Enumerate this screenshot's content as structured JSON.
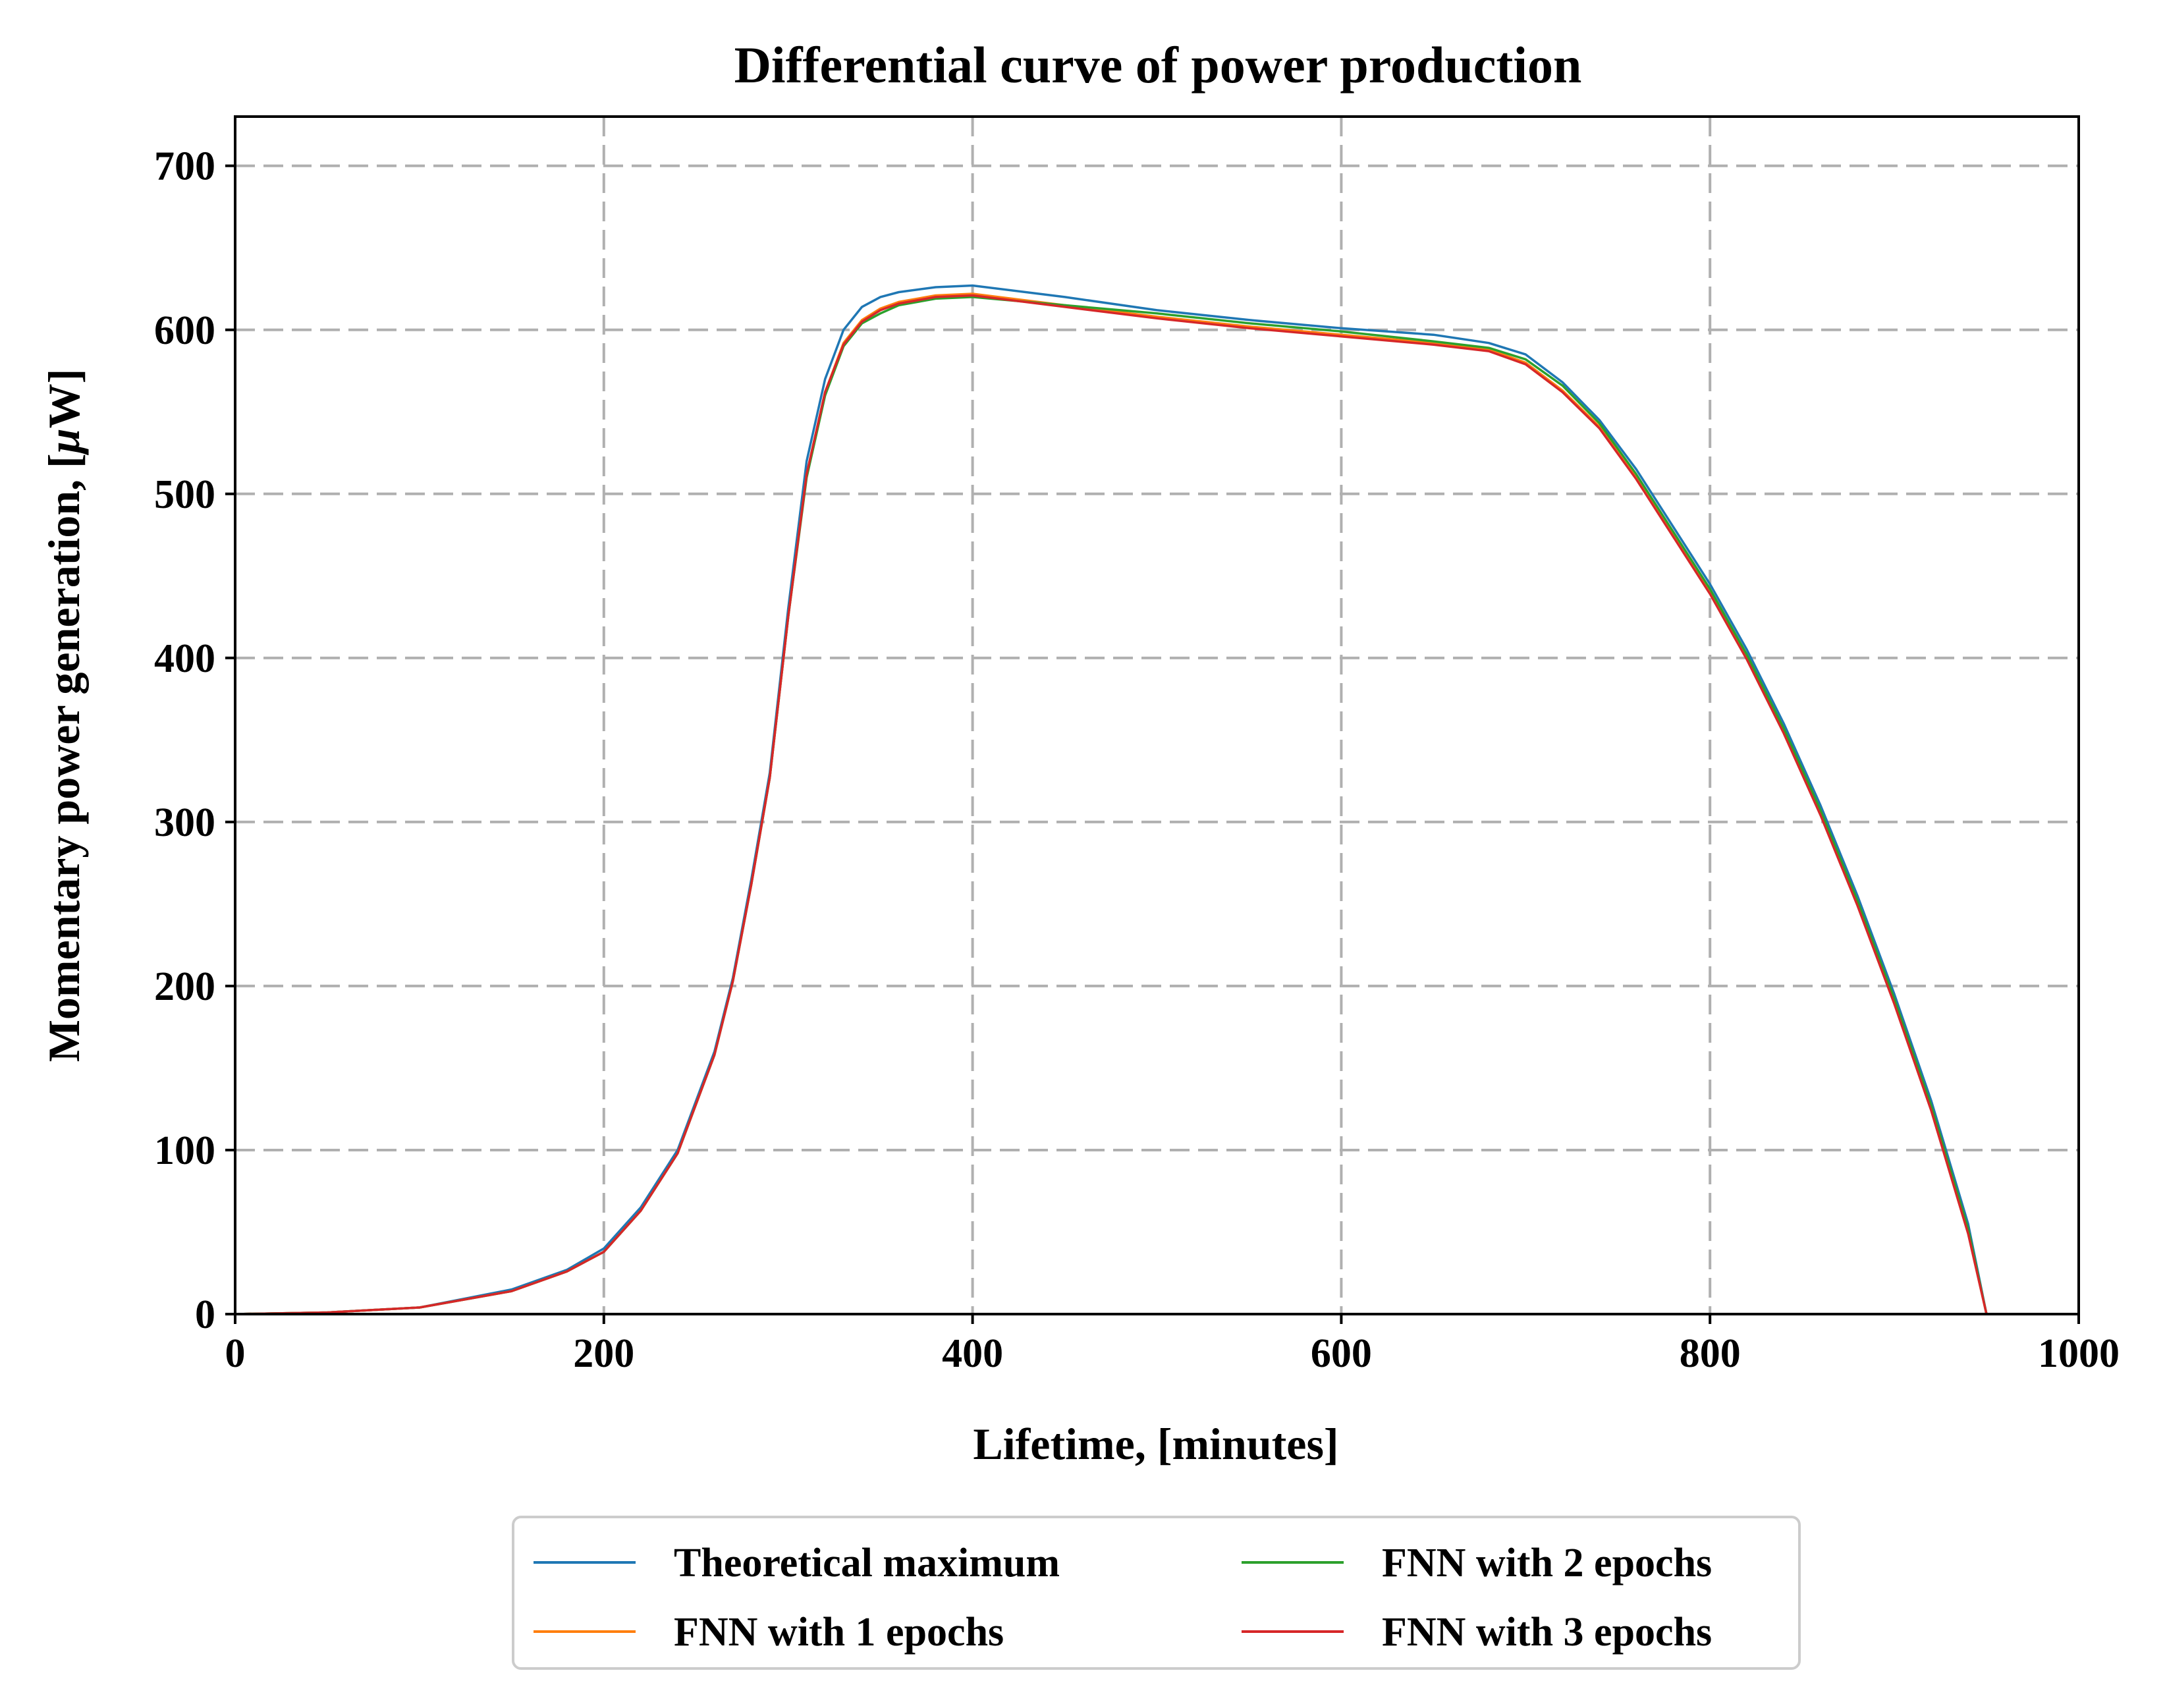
{
  "chart_data": {
    "type": "line",
    "title": "Differential curve of power production",
    "xlabel": "Lifetime, [minutes]",
    "ylabel_prefix": "Momentary power generation, [",
    "ylabel_mu": "μ",
    "ylabel_suffix": "W]",
    "xlim": [
      0,
      1000
    ],
    "ylim": [
      0,
      730
    ],
    "xticks": [
      0,
      200,
      400,
      600,
      800,
      1000
    ],
    "yticks": [
      0,
      100,
      200,
      300,
      400,
      500,
      600,
      700
    ],
    "grid": true,
    "legend_position": "below",
    "legend_columns": 2,
    "x": [
      0,
      50,
      100,
      150,
      180,
      200,
      220,
      240,
      260,
      270,
      280,
      290,
      300,
      310,
      320,
      330,
      340,
      350,
      360,
      380,
      400,
      450,
      500,
      550,
      600,
      650,
      680,
      700,
      720,
      740,
      760,
      780,
      800,
      820,
      840,
      860,
      880,
      900,
      920,
      940,
      950
    ],
    "series": [
      {
        "name": "Theoretical maximum",
        "color": "#1f77b4",
        "values": [
          0,
          1,
          4,
          15,
          27,
          40,
          65,
          100,
          160,
          205,
          265,
          330,
          430,
          520,
          570,
          600,
          614,
          620,
          623,
          626,
          627,
          620,
          612,
          606,
          601,
          597,
          592,
          585,
          568,
          545,
          515,
          480,
          445,
          405,
          360,
          310,
          255,
          195,
          130,
          55,
          0
        ]
      },
      {
        "name": "FNN with 1 epochs",
        "color": "#ff7f0e",
        "values": [
          0,
          1,
          4,
          14,
          26,
          38,
          63,
          98,
          158,
          203,
          262,
          327,
          425,
          512,
          562,
          592,
          606,
          613,
          617,
          621,
          622,
          615,
          608,
          602,
          597,
          592,
          588,
          580,
          563,
          541,
          510,
          475,
          440,
          400,
          355,
          305,
          250,
          190,
          125,
          50,
          0
        ]
      },
      {
        "name": "FNN with 2 epochs",
        "color": "#2ca02c",
        "values": [
          0,
          1,
          4,
          14,
          26,
          38,
          63,
          98,
          158,
          203,
          262,
          327,
          425,
          510,
          560,
          590,
          604,
          610,
          615,
          619,
          620,
          615,
          610,
          604,
          599,
          593,
          589,
          582,
          566,
          543,
          512,
          477,
          442,
          402,
          357,
          307,
          252,
          192,
          127,
          52,
          0
        ]
      },
      {
        "name": "FNN with 3 epochs",
        "color": "#d62728",
        "values": [
          0,
          1,
          4,
          14,
          26,
          38,
          63,
          98,
          158,
          203,
          262,
          327,
          425,
          512,
          562,
          591,
          605,
          612,
          616,
          620,
          621,
          614,
          607,
          601,
          596,
          591,
          587,
          579,
          562,
          540,
          509,
          474,
          439,
          399,
          354,
          304,
          249,
          189,
          124,
          49,
          0
        ]
      }
    ]
  }
}
